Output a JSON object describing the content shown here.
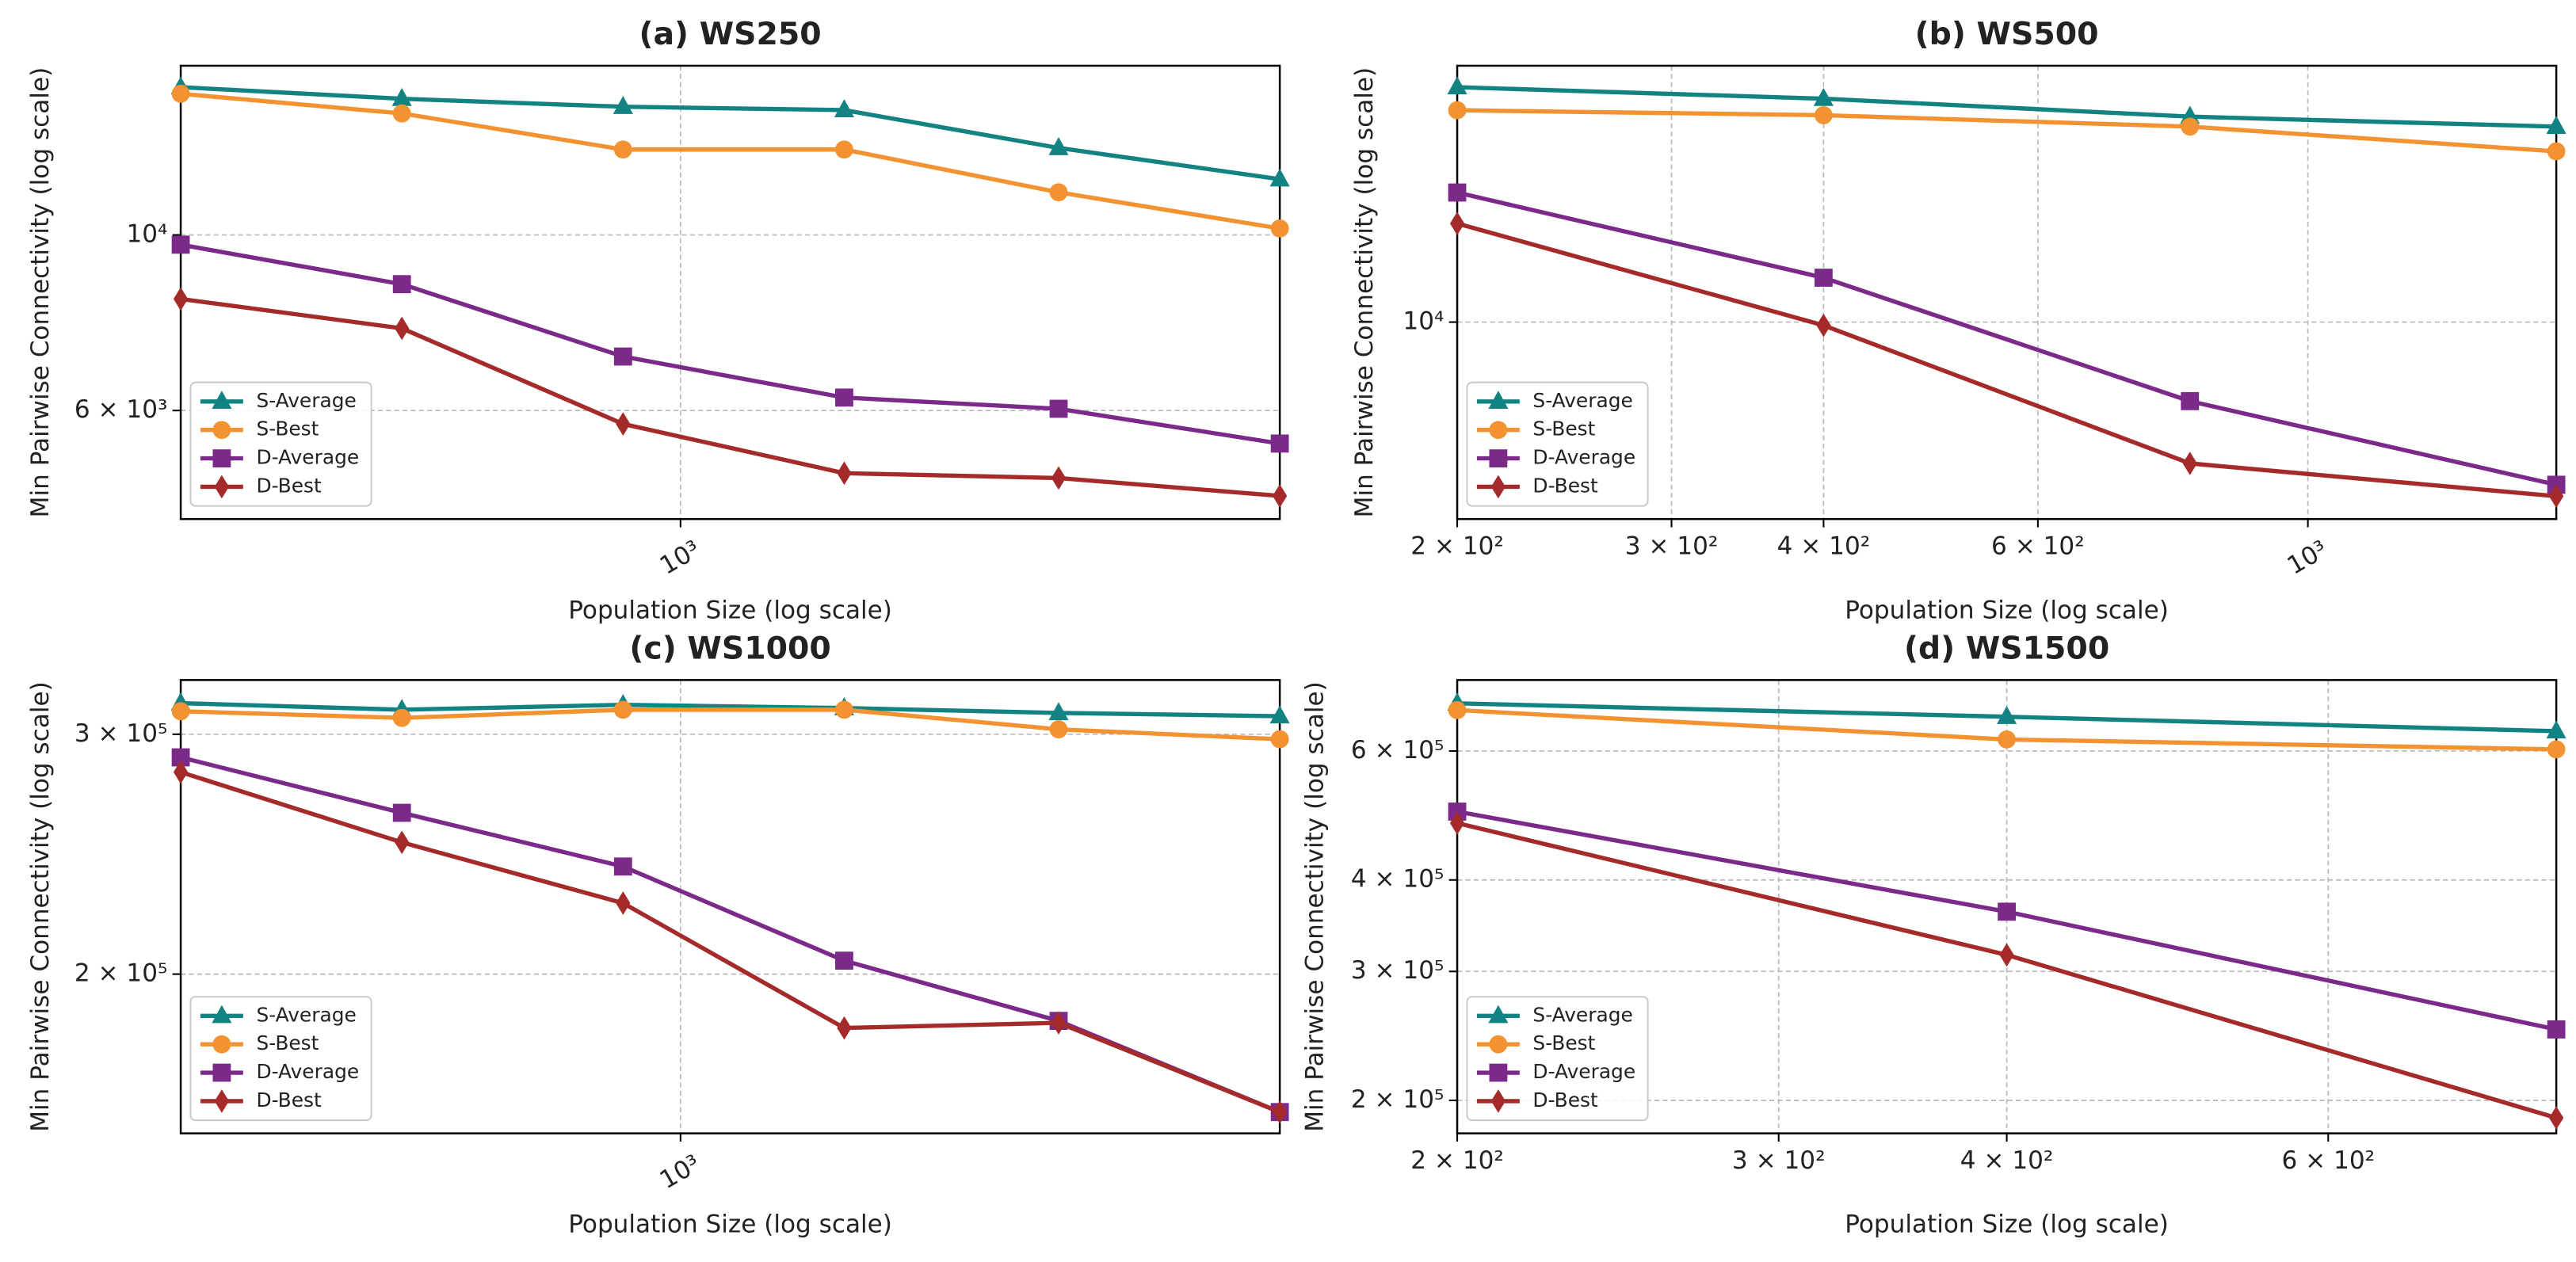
{
  "chart_data": [
    {
      "type": "line",
      "title": "(a) WS250",
      "x_label": "Population Size (log scale)",
      "y_label": "Min Pairwise Connectivity (log scale)",
      "x": [
        400,
        600,
        900,
        1350,
        2000,
        3000
      ],
      "xlim": [
        400,
        3000
      ],
      "xticks": [
        {
          "value": 1000,
          "label": "10³"
        }
      ],
      "ylim": [
        4375,
        16360
      ],
      "yticks": [
        {
          "value": 6000,
          "label": "6 × 10³"
        },
        {
          "value": 10000,
          "label": "10⁴"
        }
      ],
      "log_x": true,
      "log_y": true,
      "grid": true,
      "legend": "lower left",
      "series": [
        {
          "name": "S-Average",
          "color": "#138282",
          "marker": "triangle",
          "values": [
            15370,
            14860,
            14520,
            14380,
            12880,
            11760
          ]
        },
        {
          "name": "S-Best",
          "color": "#f39230",
          "marker": "circle",
          "values": [
            15080,
            14240,
            12820,
            12820,
            11320,
            10190
          ]
        },
        {
          "name": "D-Average",
          "color": "#7b2a8a",
          "marker": "square",
          "values": [
            9720,
            8665,
            7020,
            6230,
            6030,
            5450
          ]
        },
        {
          "name": "D-Best",
          "color": "#a52a2a",
          "marker": "diamond",
          "values": [
            8300,
            7620,
            5770,
            5000,
            4930,
            4680
          ]
        }
      ]
    },
    {
      "type": "line",
      "title": "(b) WS500",
      "x_label": "Population Size (log scale)",
      "y_label": "Min Pairwise Connectivity (log scale)",
      "x": [
        200,
        400,
        800,
        1600
      ],
      "xlim": [
        200,
        1600
      ],
      "xticks": [
        {
          "value": 200,
          "label": "2 × 10²"
        },
        {
          "value": 300,
          "label": "3 × 10²"
        },
        {
          "value": 400,
          "label": "4 × 10²"
        },
        {
          "value": 600,
          "label": "6 × 10²"
        },
        {
          "value": 1000,
          "label": "10³"
        }
      ],
      "ylim": [
        5770,
        20460
      ],
      "yticks": [
        {
          "value": 10000,
          "label": "10⁴"
        }
      ],
      "log_x": true,
      "log_y": true,
      "grid": true,
      "legend": "lower left",
      "series": [
        {
          "name": "S-Average",
          "color": "#138282",
          "marker": "triangle",
          "values": [
            19270,
            18660,
            17750,
            17260
          ]
        },
        {
          "name": "S-Best",
          "color": "#f39230",
          "marker": "circle",
          "values": [
            18070,
            17820,
            17260,
            16110
          ]
        },
        {
          "name": "D-Average",
          "color": "#7b2a8a",
          "marker": "square",
          "values": [
            14360,
            11320,
            8020,
            6350
          ]
        },
        {
          "name": "D-Best",
          "color": "#a52a2a",
          "marker": "diamond",
          "values": [
            13170,
            9910,
            6740,
            6150
          ]
        }
      ]
    },
    {
      "type": "line",
      "title": "(c) WS1000",
      "x_label": "Population Size (log scale)",
      "y_label": "Min Pairwise Connectivity (log scale)",
      "x": [
        400,
        600,
        900,
        1350,
        2000,
        3000
      ],
      "xlim": [
        400,
        3000
      ],
      "xticks": [
        {
          "value": 1000,
          "label": "10³"
        }
      ],
      "ylim": [
        152800,
        328800
      ],
      "yticks": [
        {
          "value": 200000,
          "label": "2 × 10⁵"
        },
        {
          "value": 300000,
          "label": "3 × 10⁵"
        }
      ],
      "log_x": true,
      "log_y": true,
      "grid": true,
      "legend": "lower left",
      "series": [
        {
          "name": "S-Average",
          "color": "#138282",
          "marker": "triangle",
          "values": [
            316200,
            312700,
            315300,
            313600,
            311000,
            309300
          ]
        },
        {
          "name": "S-Best",
          "color": "#f39230",
          "marker": "circle",
          "values": [
            311900,
            308400,
            312700,
            312700,
            302500,
            297500
          ]
        },
        {
          "name": "D-Average",
          "color": "#7b2a8a",
          "marker": "square",
          "values": [
            288500,
            262700,
            239900,
            204600,
            184800,
            158400
          ]
        },
        {
          "name": "D-Best",
          "color": "#a52a2a",
          "marker": "diamond",
          "values": [
            281400,
            249900,
            225500,
            182600,
            184200,
            158400
          ]
        }
      ]
    },
    {
      "type": "line",
      "title": "(d) WS1500",
      "x_label": "Population Size (log scale)",
      "y_label": "Min Pairwise Connectivity (log scale)",
      "x": [
        200,
        400,
        800
      ],
      "xlim": [
        200,
        800
      ],
      "xticks": [
        {
          "value": 200,
          "label": "2 × 10²"
        },
        {
          "value": 300,
          "label": "3 × 10²"
        },
        {
          "value": 400,
          "label": "4 × 10²"
        },
        {
          "value": 600,
          "label": "6 × 10²"
        }
      ],
      "ylim": [
        180300,
        750000
      ],
      "yticks": [
        {
          "value": 200000,
          "label": "2 × 10⁵"
        },
        {
          "value": 300000,
          "label": "3 × 10⁵"
        },
        {
          "value": 400000,
          "label": "4 × 10⁵"
        },
        {
          "value": 600000,
          "label": "6 × 10⁵"
        }
      ],
      "log_x": true,
      "log_y": true,
      "grid": true,
      "legend": "lower left",
      "series": [
        {
          "name": "S-Average",
          "color": "#138282",
          "marker": "triangle",
          "values": [
            697000,
            668200,
            638600
          ]
        },
        {
          "name": "S-Best",
          "color": "#f39230",
          "marker": "circle",
          "values": [
            682300,
            622200,
            603100
          ]
        },
        {
          "name": "D-Average",
          "color": "#7b2a8a",
          "marker": "square",
          "values": [
            495900,
            362000,
            250000
          ]
        },
        {
          "name": "D-Best",
          "color": "#a52a2a",
          "marker": "diamond",
          "values": [
            478300,
            316000,
            189300
          ]
        }
      ]
    }
  ]
}
